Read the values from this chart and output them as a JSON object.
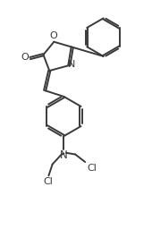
{
  "bg_color": "#ffffff",
  "line_color": "#3a3a3a",
  "line_width": 1.4,
  "figsize": [
    1.7,
    2.66
  ],
  "dpi": 100,
  "xlim": [
    0,
    10
  ],
  "ylim": [
    0,
    15.65
  ]
}
